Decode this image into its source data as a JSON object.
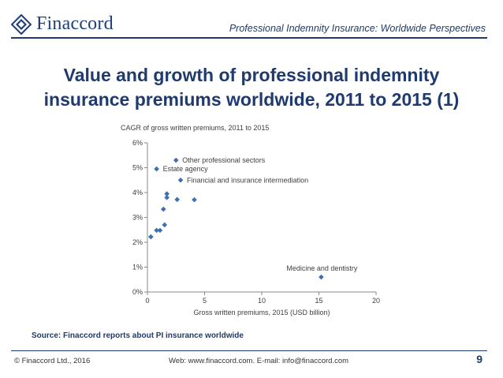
{
  "header": {
    "logo_text": "Finaccord",
    "title": "Professional Indemnity Insurance: Worldwide Perspectives"
  },
  "slide": {
    "title_line1": "Value and growth of professional indemnity",
    "title_line2": "insurance premiums worldwide, 2011 to 2015 (1)",
    "source": "Source: Finaccord reports about PI insurance worldwide"
  },
  "footer": {
    "copyright": "© Finaccord Ltd., 2016",
    "contact": "Web: www.finaccord.com. E-mail: info@finaccord.com",
    "page_number": "9"
  },
  "colors": {
    "accent": "#1f3a6e",
    "marker": "#3f6fb0"
  },
  "chart_data": {
    "type": "scatter",
    "ylabel": "CAGR of gross written premiums, 2011 to 2015",
    "xlabel": "Gross written premiums, 2015 (USD billion)",
    "xlim": [
      0,
      20
    ],
    "ylim": [
      0,
      0.06
    ],
    "x_ticks": [
      0,
      5,
      10,
      15,
      20
    ],
    "y_ticks": [
      0,
      0.01,
      0.02,
      0.03,
      0.04,
      0.05,
      0.06
    ],
    "y_tick_labels": [
      "0%",
      "1%",
      "2%",
      "3%",
      "4%",
      "5%",
      "6%"
    ],
    "grid": false,
    "legend": "none",
    "points": [
      {
        "x": 2.5,
        "y": 0.053,
        "label": "Other professional sectors"
      },
      {
        "x": 0.8,
        "y": 0.0495,
        "label": "Estate agency"
      },
      {
        "x": 2.9,
        "y": 0.045,
        "label": "Financial and insurance intermediation"
      },
      {
        "x": 15.2,
        "y": 0.006,
        "label": "Medicine and dentistry"
      },
      {
        "x": 1.7,
        "y": 0.0395,
        "label": ""
      },
      {
        "x": 1.7,
        "y": 0.038,
        "label": ""
      },
      {
        "x": 2.6,
        "y": 0.0372,
        "label": ""
      },
      {
        "x": 4.1,
        "y": 0.0371,
        "label": ""
      },
      {
        "x": 1.4,
        "y": 0.0333,
        "label": ""
      },
      {
        "x": 1.5,
        "y": 0.027,
        "label": ""
      },
      {
        "x": 0.8,
        "y": 0.0248,
        "label": ""
      },
      {
        "x": 1.1,
        "y": 0.0248,
        "label": ""
      },
      {
        "x": 0.3,
        "y": 0.0222,
        "label": ""
      }
    ]
  }
}
